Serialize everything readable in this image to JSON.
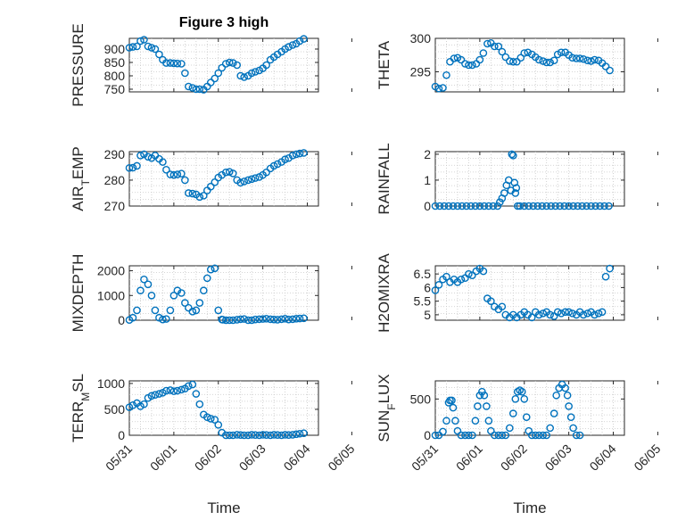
{
  "figure": {
    "title": "Figure 3 high",
    "marker_color": "#0072BD",
    "x_tick_labels": [
      "05/31",
      "06/01",
      "06/02",
      "06/03",
      "06/04",
      "06/05"
    ],
    "x_label": "Time"
  },
  "chart_data": [
    {
      "type": "scatter",
      "title": "Figure 3 high",
      "ylabel": "PRESSURE",
      "yticks": [
        750,
        800,
        850,
        900
      ],
      "ylim": [
        740,
        940
      ],
      "xlim": [
        "05/31",
        "06/04 06:00"
      ],
      "grid": true,
      "x_days": [
        0,
        0.08,
        0.17,
        0.25,
        0.33,
        0.42,
        0.5,
        0.58,
        0.67,
        0.75,
        0.83,
        0.92,
        1,
        1.08,
        1.17,
        1.25,
        1.33,
        1.42,
        1.5,
        1.58,
        1.67,
        1.75,
        1.83,
        1.92,
        2,
        2.08,
        2.17,
        2.25,
        2.33,
        2.42,
        2.5,
        2.58,
        2.67,
        2.75,
        2.83,
        2.92,
        3,
        3.08,
        3.17,
        3.25,
        3.33,
        3.42,
        3.5,
        3.58,
        3.67,
        3.75,
        3.83,
        3.92
      ],
      "values": [
        905,
        908,
        910,
        930,
        935,
        910,
        905,
        900,
        880,
        860,
        848,
        848,
        847,
        846,
        845,
        810,
        760,
        755,
        750,
        750,
        748,
        760,
        775,
        790,
        810,
        830,
        845,
        850,
        848,
        840,
        800,
        795,
        800,
        810,
        815,
        820,
        828,
        840,
        860,
        870,
        880,
        890,
        900,
        908,
        915,
        920,
        930,
        938
      ]
    },
    {
      "type": "scatter",
      "ylabel": "THETA",
      "yticks": [
        295,
        300
      ],
      "ylim": [
        292,
        300
      ],
      "xlim": [
        "05/31",
        "06/04 06:00"
      ],
      "grid": true,
      "x_days": [
        0,
        0.08,
        0.17,
        0.25,
        0.33,
        0.42,
        0.5,
        0.58,
        0.67,
        0.75,
        0.83,
        0.92,
        1,
        1.08,
        1.17,
        1.25,
        1.33,
        1.42,
        1.5,
        1.58,
        1.67,
        1.75,
        1.83,
        1.92,
        2,
        2.08,
        2.17,
        2.25,
        2.33,
        2.42,
        2.5,
        2.58,
        2.67,
        2.75,
        2.83,
        2.92,
        3,
        3.08,
        3.17,
        3.25,
        3.33,
        3.42,
        3.5,
        3.58,
        3.67,
        3.75,
        3.83,
        3.92
      ],
      "values": [
        292.8,
        292.5,
        292.6,
        294.5,
        296.5,
        297,
        297.1,
        296.8,
        296.2,
        296,
        296,
        296.2,
        296.8,
        297.8,
        299.2,
        299.3,
        298.8,
        298.8,
        298,
        297.2,
        296.6,
        296.5,
        296.5,
        297.1,
        297.8,
        297.9,
        297.6,
        297.2,
        296.8,
        296.6,
        296.4,
        296.4,
        296.7,
        297.6,
        297.9,
        297.9,
        297.5,
        297.1,
        297,
        297,
        296.9,
        296.7,
        296.6,
        296.8,
        296.7,
        296.3,
        295.8,
        295.2
      ]
    },
    {
      "type": "scatter",
      "ylabel": "AIR_TEMP",
      "yticks": [
        270,
        280,
        290
      ],
      "ylim": [
        270,
        291
      ],
      "xlim": [
        "05/31",
        "06/04 06:00"
      ],
      "grid": true,
      "x_days": [
        0,
        0.08,
        0.17,
        0.25,
        0.33,
        0.42,
        0.5,
        0.58,
        0.67,
        0.75,
        0.83,
        0.92,
        1,
        1.08,
        1.17,
        1.25,
        1.33,
        1.42,
        1.5,
        1.58,
        1.67,
        1.75,
        1.83,
        1.92,
        2,
        2.08,
        2.17,
        2.25,
        2.33,
        2.42,
        2.5,
        2.58,
        2.67,
        2.75,
        2.83,
        2.92,
        3,
        3.08,
        3.17,
        3.25,
        3.33,
        3.42,
        3.5,
        3.58,
        3.67,
        3.75,
        3.83,
        3.92
      ],
      "values": [
        284.7,
        284.8,
        285.5,
        289.5,
        290,
        289,
        288.5,
        289.5,
        288.2,
        287,
        284,
        282.2,
        282,
        282.2,
        282.5,
        280,
        275,
        274.8,
        274.5,
        273.5,
        274,
        276,
        277.5,
        279.2,
        281,
        282,
        283,
        283.2,
        282.6,
        280,
        279,
        279.5,
        280,
        280.4,
        280.8,
        281.2,
        282,
        283,
        284.5,
        285.5,
        286.2,
        287,
        288,
        288.5,
        289.5,
        290,
        290.3,
        290.5
      ]
    },
    {
      "type": "scatter",
      "ylabel": "RAINFALL",
      "yticks": [
        0,
        1,
        2
      ],
      "ylim": [
        0,
        2.1
      ],
      "xlim": [
        "05/31",
        "06/04 06:00"
      ],
      "grid": true,
      "x_days": [
        0,
        0.1,
        0.2,
        0.3,
        0.4,
        0.5,
        0.6,
        0.7,
        0.8,
        0.9,
        1,
        1.1,
        1.2,
        1.3,
        1.4,
        1.45,
        1.5,
        1.55,
        1.6,
        1.65,
        1.7,
        1.72,
        1.75,
        1.78,
        1.8,
        1.82,
        1.85,
        1.9,
        2,
        2.1,
        2.2,
        2.3,
        2.4,
        2.5,
        2.6,
        2.7,
        2.8,
        2.9,
        3,
        3.1,
        3.2,
        3.3,
        3.4,
        3.5,
        3.6,
        3.7,
        3.8,
        3.9
      ],
      "values": [
        0,
        0,
        0,
        0,
        0,
        0,
        0,
        0,
        0,
        0,
        0,
        0,
        0,
        0,
        0,
        0.15,
        0.3,
        0.5,
        0.8,
        1,
        0.6,
        2,
        1.95,
        0.9,
        0.5,
        0.7,
        0,
        0,
        0,
        0,
        0,
        0,
        0,
        0,
        0,
        0,
        0,
        0,
        0,
        0,
        0,
        0,
        0,
        0,
        0,
        0,
        0,
        0
      ]
    },
    {
      "type": "scatter",
      "ylabel": "MIXDEPTH",
      "yticks": [
        0,
        1000,
        2000
      ],
      "ylim": [
        0,
        2200
      ],
      "xlim": [
        "05/31",
        "06/04 06:00"
      ],
      "grid": true,
      "x_days": [
        0,
        0.08,
        0.17,
        0.25,
        0.33,
        0.42,
        0.5,
        0.58,
        0.67,
        0.75,
        0.83,
        0.92,
        1,
        1.08,
        1.17,
        1.25,
        1.33,
        1.42,
        1.5,
        1.58,
        1.67,
        1.75,
        1.83,
        1.92,
        2,
        2.08,
        2.1,
        2.17,
        2.25,
        2.33,
        2.42,
        2.5,
        2.58,
        2.67,
        2.75,
        2.83,
        2.92,
        3,
        3.08,
        3.17,
        3.25,
        3.33,
        3.42,
        3.5,
        3.58,
        3.67,
        3.75,
        3.83,
        3.92
      ],
      "values": [
        10,
        100,
        400,
        1200,
        1650,
        1450,
        1000,
        400,
        100,
        30,
        50,
        400,
        1000,
        1200,
        1100,
        700,
        500,
        350,
        400,
        700,
        1200,
        1700,
        2050,
        2100,
        400,
        30,
        20,
        0,
        0,
        0,
        20,
        40,
        50,
        0,
        0,
        30,
        40,
        50,
        60,
        40,
        30,
        20,
        40,
        60,
        30,
        40,
        60,
        70,
        80
      ]
    },
    {
      "type": "scatter",
      "ylabel": "H2OMIXRA",
      "yticks": [
        5,
        5.5,
        6,
        6.5
      ],
      "ylim": [
        4.8,
        6.8
      ],
      "xlim": [
        "05/31",
        "06/04 06:00"
      ],
      "grid": true,
      "x_days": [
        0,
        0.08,
        0.17,
        0.25,
        0.33,
        0.42,
        0.5,
        0.58,
        0.67,
        0.75,
        0.83,
        0.92,
        1,
        1.08,
        1.17,
        1.25,
        1.33,
        1.42,
        1.5,
        1.58,
        1.67,
        1.75,
        1.83,
        1.92,
        2,
        2.08,
        2.17,
        2.25,
        2.33,
        2.42,
        2.5,
        2.58,
        2.67,
        2.75,
        2.83,
        2.92,
        3,
        3.08,
        3.17,
        3.25,
        3.33,
        3.42,
        3.5,
        3.58,
        3.67,
        3.75,
        3.83,
        3.92
      ],
      "values": [
        5.9,
        6.1,
        6.3,
        6.4,
        6.2,
        6.3,
        6.2,
        6.3,
        6.35,
        6.5,
        6.45,
        6.6,
        6.7,
        6.6,
        5.6,
        5.5,
        5.3,
        5.2,
        5.3,
        5,
        4.9,
        5,
        4.9,
        5,
        5.1,
        5,
        4.9,
        5.1,
        5,
        5.05,
        5.1,
        5,
        4.95,
        5.1,
        5.05,
        5.1,
        5.1,
        5.05,
        5,
        5.1,
        5,
        5.05,
        5.1,
        5,
        5.05,
        5.1,
        6.4,
        6.7
      ]
    },
    {
      "type": "scatter",
      "ylabel": "TERR_MSL",
      "yticks": [
        0,
        500,
        1000
      ],
      "ylim": [
        0,
        1050
      ],
      "xlim": [
        "05/31",
        "06/04 06:00"
      ],
      "grid": true,
      "x_days": [
        0,
        0.08,
        0.17,
        0.25,
        0.33,
        0.42,
        0.5,
        0.58,
        0.67,
        0.75,
        0.83,
        0.92,
        1,
        1.08,
        1.17,
        1.25,
        1.33,
        1.42,
        1.5,
        1.58,
        1.67,
        1.75,
        1.83,
        1.92,
        2,
        2.08,
        2.17,
        2.25,
        2.33,
        2.42,
        2.5,
        2.58,
        2.67,
        2.75,
        2.83,
        2.92,
        3,
        3.08,
        3.17,
        3.25,
        3.33,
        3.42,
        3.5,
        3.58,
        3.67,
        3.75,
        3.83,
        3.92
      ],
      "values": [
        540,
        580,
        620,
        560,
        600,
        720,
        760,
        780,
        800,
        820,
        860,
        870,
        850,
        860,
        880,
        900,
        950,
        980,
        800,
        600,
        400,
        350,
        320,
        300,
        200,
        50,
        0,
        0,
        0,
        10,
        5,
        0,
        0,
        10,
        5,
        0,
        10,
        5,
        0,
        10,
        5,
        0,
        10,
        5,
        10,
        20,
        30,
        40
      ]
    },
    {
      "type": "scatter",
      "ylabel": "SUN_FLUX",
      "yticks": [
        0,
        500
      ],
      "ylim": [
        0,
        750
      ],
      "xlim": [
        "05/31",
        "06/04 06:00"
      ],
      "grid": true,
      "x_days": [
        0,
        0.08,
        0.17,
        0.25,
        0.3,
        0.33,
        0.37,
        0.4,
        0.45,
        0.5,
        0.58,
        0.67,
        0.75,
        0.83,
        0.9,
        0.95,
        1,
        1.05,
        1.1,
        1.15,
        1.2,
        1.25,
        1.33,
        1.42,
        1.5,
        1.58,
        1.67,
        1.75,
        1.8,
        1.85,
        1.9,
        1.95,
        2,
        2.05,
        2.1,
        2.17,
        2.25,
        2.33,
        2.42,
        2.5,
        2.58,
        2.67,
        2.72,
        2.78,
        2.85,
        2.92,
        2.97,
        3,
        3.05,
        3.1,
        3.17,
        3.25
      ],
      "values": [
        0,
        0,
        50,
        200,
        450,
        480,
        480,
        380,
        200,
        60,
        0,
        0,
        0,
        0,
        200,
        400,
        550,
        600,
        550,
        400,
        200,
        60,
        0,
        0,
        0,
        0,
        100,
        300,
        500,
        600,
        620,
        600,
        500,
        250,
        60,
        0,
        0,
        0,
        0,
        0,
        100,
        300,
        550,
        650,
        700,
        650,
        550,
        400,
        250,
        100,
        0,
        0
      ]
    }
  ]
}
